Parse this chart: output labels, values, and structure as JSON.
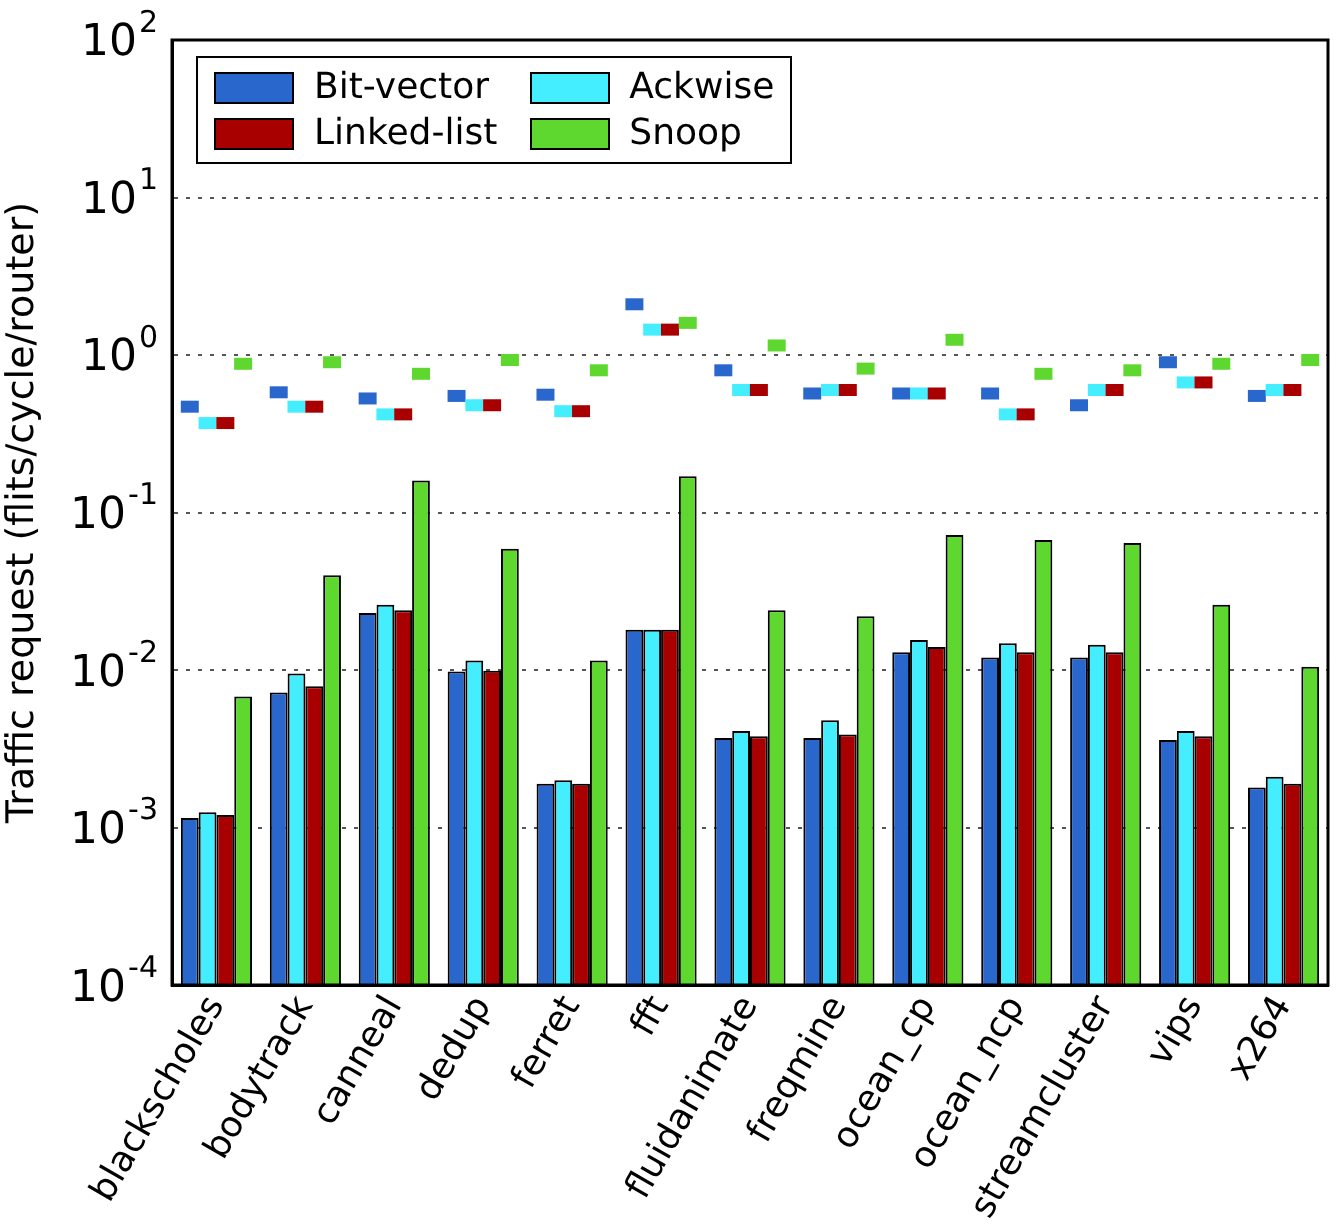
{
  "chart_data": {
    "type": "bar",
    "ylabel": "Traffic request (flits/cycle/router)",
    "log": "y",
    "grid": "y",
    "legend": "top left",
    "categories": [
      "blackscholes",
      "bodytrack",
      "canneal",
      "dedup",
      "ferret",
      "fft",
      "fluidanimate",
      "freqmine",
      "ocean_cp",
      "ocean_ncp",
      "streamcluster",
      "vips",
      "x264"
    ],
    "ylim": [
      0.0001,
      100
    ],
    "yticks": [
      {
        "value": 0.0001,
        "label": "10$^{-4}$"
      },
      {
        "value": 0.001,
        "label": "10$^{-3}$"
      },
      {
        "value": 0.01,
        "label": "10$^{-2}$"
      },
      {
        "value": 0.1,
        "label": "10$^{-1}$"
      },
      {
        "value": 1,
        "label": "10$^{0}$"
      },
      {
        "value": 10,
        "label": "10$^{1}$"
      },
      {
        "value": 100,
        "label": "10$^{2}$"
      }
    ],
    "series": [
      {
        "name": "Bit-vector",
        "color": "#2a67cc",
        "values": [
          0.00115,
          0.0072,
          0.023,
          0.0098,
          0.0019,
          0.018,
          0.0037,
          0.0037,
          0.013,
          0.012,
          0.012,
          0.0036,
          0.0018
        ]
      },
      {
        "name": "Ackwise",
        "color": "#44eeff",
        "values": [
          0.00125,
          0.0095,
          0.026,
          0.0115,
          0.002,
          0.018,
          0.0041,
          0.0048,
          0.0155,
          0.0148,
          0.0145,
          0.0041,
          0.0021
        ]
      },
      {
        "name": "Linked-list",
        "color": "#a80000",
        "values": [
          0.0012,
          0.0079,
          0.024,
          0.0099,
          0.0019,
          0.018,
          0.0038,
          0.0039,
          0.014,
          0.013,
          0.013,
          0.0038,
          0.0019
        ]
      },
      {
        "name": "Snoop",
        "color": "#5ed82e",
        "values": [
          0.0068,
          0.04,
          0.16,
          0.059,
          0.0115,
          0.17,
          0.024,
          0.022,
          0.072,
          0.067,
          0.064,
          0.026,
          0.0105
        ]
      },
      {
        "type": "scatter",
        "marker": "square",
        "color": "#2a67cc",
        "x": [
          "blackscholes",
          "bodytrack",
          "canneal",
          "dedup",
          "ferret",
          "fft",
          "fluidanimate",
          "freqmine",
          "ocean_cp",
          "ocean_ncp",
          "streamcluster",
          "vips",
          "x264"
        ],
        "values": [
          0.47,
          0.58,
          0.53,
          0.55,
          0.56,
          2.1,
          0.8,
          0.57,
          0.57,
          0.57,
          0.48,
          0.9,
          0.55
        ]
      },
      {
        "type": "scatter",
        "marker": "square",
        "color": "#44eeff",
        "x": [
          "blackscholes",
          "bodytrack",
          "canneal",
          "dedup",
          "ferret",
          "fft",
          "fluidanimate",
          "freqmine",
          "ocean_cp",
          "ocean_ncp",
          "streamcluster",
          "vips",
          "x264"
        ],
        "values": [
          0.37,
          0.47,
          0.42,
          0.48,
          0.44,
          1.45,
          0.6,
          0.6,
          0.57,
          0.42,
          0.6,
          0.67,
          0.6
        ]
      },
      {
        "type": "scatter",
        "marker": "square",
        "color": "#a80000",
        "x": [
          "blackscholes",
          "bodytrack",
          "canneal",
          "dedup",
          "ferret",
          "fft",
          "fluidanimate",
          "freqmine",
          "ocean_cp",
          "ocean_ncp",
          "streamcluster",
          "vips",
          "x264"
        ],
        "values": [
          0.37,
          0.47,
          0.42,
          0.48,
          0.44,
          1.45,
          0.6,
          0.6,
          0.57,
          0.42,
          0.6,
          0.67,
          0.6
        ]
      },
      {
        "type": "scatter",
        "marker": "square",
        "color": "#5ed82e",
        "x": [
          "blackscholes",
          "bodytrack",
          "canneal",
          "dedup",
          "ferret",
          "fft",
          "fluidanimate",
          "freqmine",
          "ocean_cp",
          "ocean_ncp",
          "streamcluster",
          "vips",
          "x264"
        ],
        "values": [
          0.88,
          0.9,
          0.76,
          0.93,
          0.8,
          1.6,
          1.15,
          0.82,
          1.25,
          0.76,
          0.8,
          0.88,
          0.93
        ]
      }
    ]
  }
}
